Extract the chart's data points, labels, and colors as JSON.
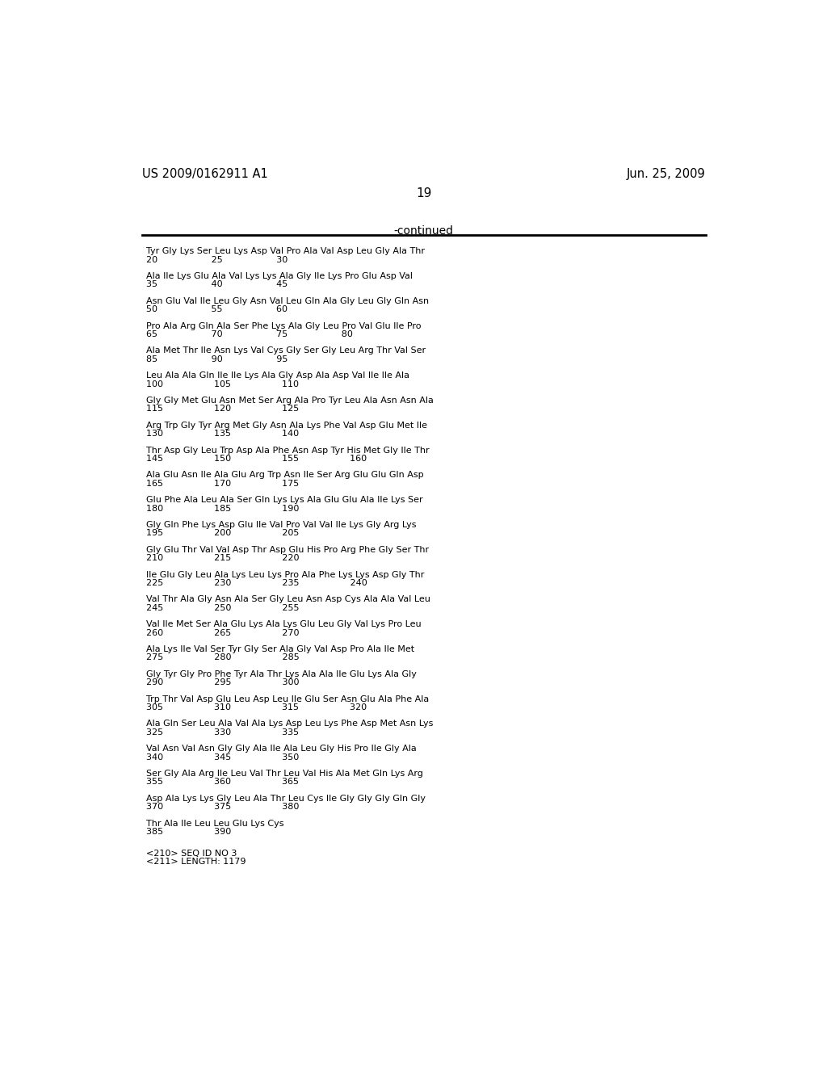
{
  "header_left": "US 2009/0162911 A1",
  "header_right": "Jun. 25, 2009",
  "page_number": "19",
  "continued_label": "-continued",
  "background_color": "#ffffff",
  "text_color": "#000000",
  "sequence_blocks": [
    [
      "Tyr Gly Lys Ser Leu Lys Asp Val Pro Ala Val Asp Leu Gly Ala Thr",
      "20                   25                   30"
    ],
    [
      "Ala Ile Lys Glu Ala Val Lys Lys Ala Gly Ile Lys Pro Glu Asp Val",
      "35                   40                   45"
    ],
    [
      "Asn Glu Val Ile Leu Gly Asn Val Leu Gln Ala Gly Leu Gly Gln Asn",
      "50                   55                   60"
    ],
    [
      "Pro Ala Arg Gln Ala Ser Phe Lys Ala Gly Leu Pro Val Glu Ile Pro",
      "65                   70                   75                   80"
    ],
    [
      "Ala Met Thr Ile Asn Lys Val Cys Gly Ser Gly Leu Arg Thr Val Ser",
      "85                   90                   95"
    ],
    [
      "Leu Ala Ala Gln Ile Ile Lys Ala Gly Asp Ala Asp Val Ile Ile Ala",
      "100                  105                  110"
    ],
    [
      "Gly Gly Met Glu Asn Met Ser Arg Ala Pro Tyr Leu Ala Asn Asn Ala",
      "115                  120                  125"
    ],
    [
      "Arg Trp Gly Tyr Arg Met Gly Asn Ala Lys Phe Val Asp Glu Met Ile",
      "130                  135                  140"
    ],
    [
      "Thr Asp Gly Leu Trp Asp Ala Phe Asn Asp Tyr His Met Gly Ile Thr",
      "145                  150                  155                  160"
    ],
    [
      "Ala Glu Asn Ile Ala Glu Arg Trp Asn Ile Ser Arg Glu Glu Gln Asp",
      "165                  170                  175"
    ],
    [
      "Glu Phe Ala Leu Ala Ser Gln Lys Lys Ala Glu Glu Ala Ile Lys Ser",
      "180                  185                  190"
    ],
    [
      "Gly Gln Phe Lys Asp Glu Ile Val Pro Val Val Ile Lys Gly Arg Lys",
      "195                  200                  205"
    ],
    [
      "Gly Glu Thr Val Val Asp Thr Asp Glu His Pro Arg Phe Gly Ser Thr",
      "210                  215                  220"
    ],
    [
      "Ile Glu Gly Leu Ala Lys Leu Lys Pro Ala Phe Lys Lys Asp Gly Thr",
      "225                  230                  235                  240"
    ],
    [
      "Val Thr Ala Gly Asn Ala Ser Gly Leu Asn Asp Cys Ala Ala Val Leu",
      "245                  250                  255"
    ],
    [
      "Val Ile Met Ser Ala Glu Lys Ala Lys Glu Leu Gly Val Lys Pro Leu",
      "260                  265                  270"
    ],
    [
      "Ala Lys Ile Val Ser Tyr Gly Ser Ala Gly Val Asp Pro Ala Ile Met",
      "275                  280                  285"
    ],
    [
      "Gly Tyr Gly Pro Phe Tyr Ala Thr Lys Ala Ala Ile Glu Lys Ala Gly",
      "290                  295                  300"
    ],
    [
      "Trp Thr Val Asp Glu Leu Asp Leu Ile Glu Ser Asn Glu Ala Phe Ala",
      "305                  310                  315                  320"
    ],
    [
      "Ala Gln Ser Leu Ala Val Ala Lys Asp Leu Lys Phe Asp Met Asn Lys",
      "325                  330                  335"
    ],
    [
      "Val Asn Val Asn Gly Gly Ala Ile Ala Leu Gly His Pro Ile Gly Ala",
      "340                  345                  350"
    ],
    [
      "Ser Gly Ala Arg Ile Leu Val Thr Leu Val His Ala Met Gln Lys Arg",
      "355                  360                  365"
    ],
    [
      "Asp Ala Lys Lys Gly Leu Ala Thr Leu Cys Ile Gly Gly Gly Gln Gly",
      "370                  375                  380"
    ],
    [
      "Thr Ala Ile Leu Leu Glu Lys Cys",
      "385                  390"
    ]
  ],
  "footer_lines": [
    "<210> SEQ ID NO 3",
    "<211> LENGTH: 1179"
  ]
}
